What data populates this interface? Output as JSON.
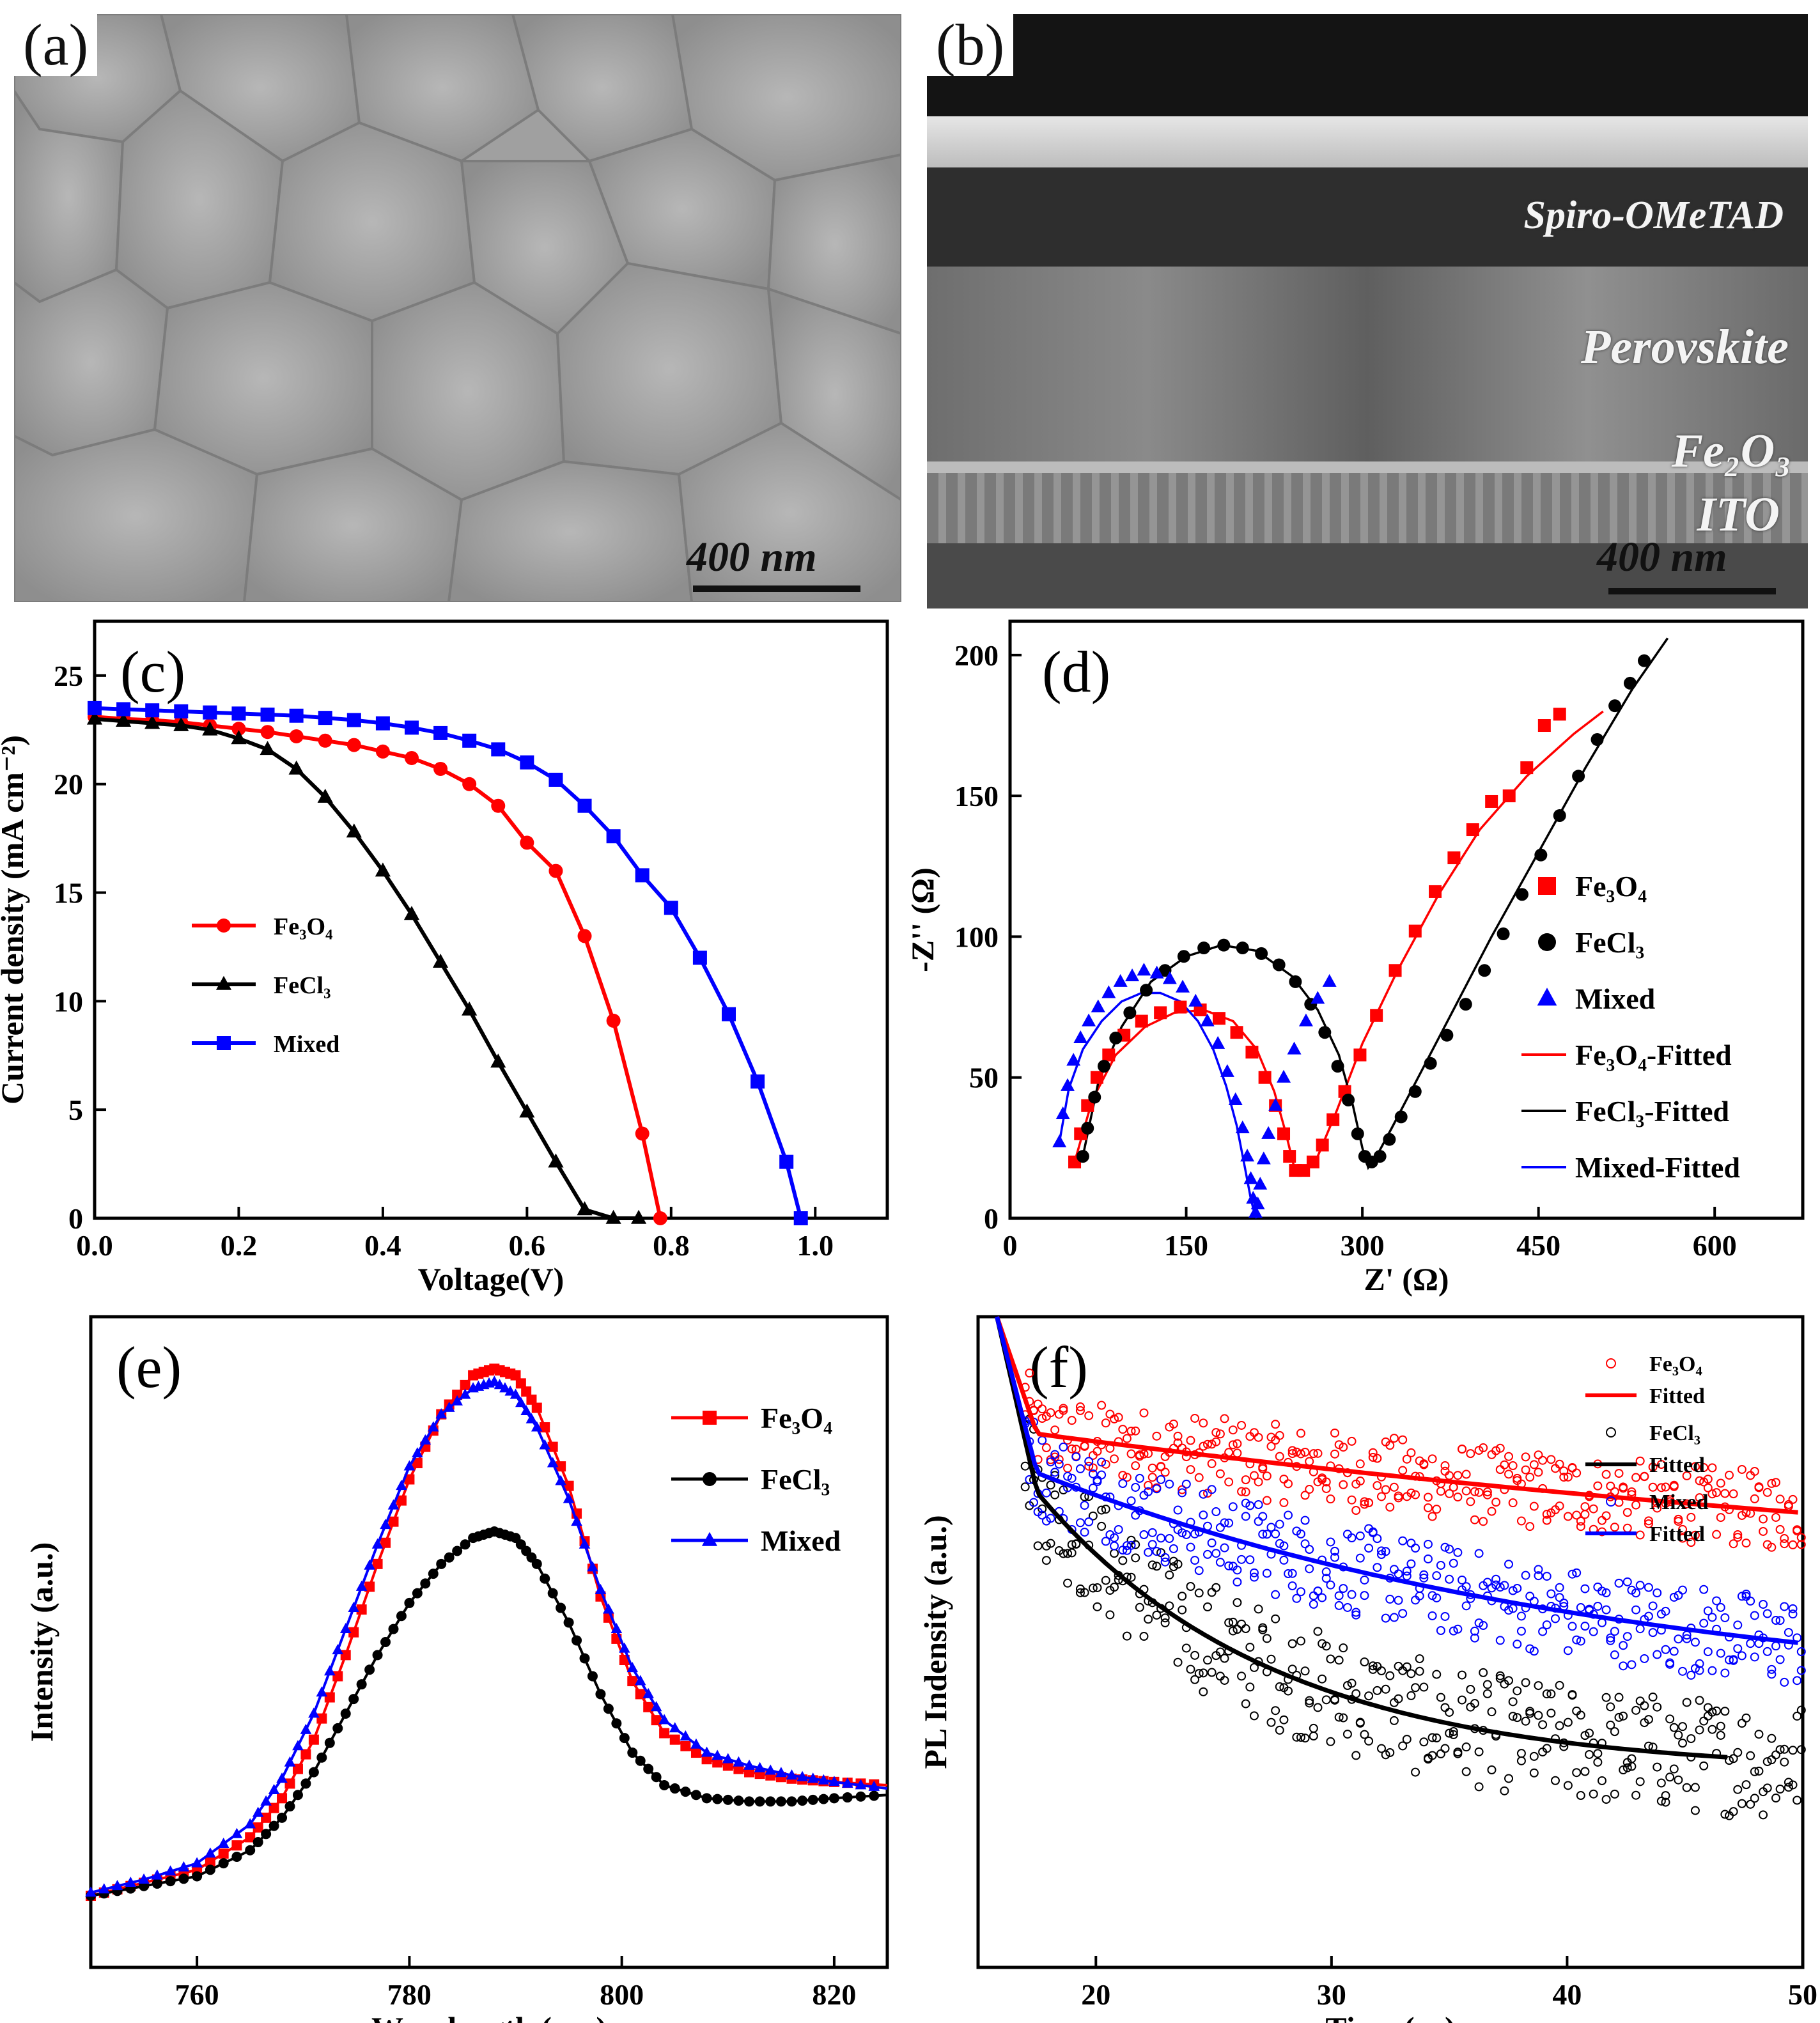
{
  "panels": {
    "a": {
      "label": "(a)",
      "scale": "400 nm"
    },
    "b": {
      "label": "(b)",
      "scale": "400 nm",
      "layers": [
        "Spiro-OMeTAD",
        "Perovskite",
        "Fe₂O₃",
        "ITO"
      ]
    }
  },
  "chart_data": [
    {
      "id": "c",
      "label": "(c)",
      "type": "line",
      "xlabel": "Voltage(V)",
      "ylabel": "Current density (mA cm⁻²)",
      "xlim": [
        0,
        1.1
      ],
      "ylim": [
        0,
        27.5
      ],
      "xticks": [
        0.0,
        0.2,
        0.4,
        0.6,
        0.8,
        1.0
      ],
      "xtick_labels": [
        "0.0",
        "0.2",
        "0.4",
        "0.6",
        "0.8",
        "1.0"
      ],
      "yticks": [
        0,
        5,
        10,
        15,
        20,
        25
      ],
      "ytick_labels": [
        "0",
        "5",
        "10",
        "15",
        "20",
        "25"
      ],
      "legend": "center-left",
      "series": [
        {
          "name": "Fe₃O₄",
          "color": "#ff0000",
          "marker": "circle",
          "x": [
            0,
            0.04,
            0.08,
            0.12,
            0.16,
            0.2,
            0.24,
            0.28,
            0.32,
            0.36,
            0.4,
            0.44,
            0.48,
            0.52,
            0.56,
            0.6,
            0.64,
            0.68,
            0.72,
            0.76,
            0.785
          ],
          "y": [
            23.1,
            23.0,
            22.95,
            22.85,
            22.7,
            22.55,
            22.4,
            22.2,
            22.0,
            21.8,
            21.5,
            21.2,
            20.7,
            20.0,
            19.0,
            17.3,
            16.0,
            13.0,
            9.1,
            3.9,
            0
          ]
        },
        {
          "name": "FeCl₃",
          "color": "#000000",
          "marker": "triangle",
          "x": [
            0,
            0.04,
            0.08,
            0.12,
            0.16,
            0.2,
            0.24,
            0.28,
            0.32,
            0.36,
            0.4,
            0.44,
            0.48,
            0.52,
            0.56,
            0.6,
            0.64,
            0.68,
            0.72,
            0.755
          ],
          "y": [
            23.0,
            22.9,
            22.8,
            22.7,
            22.5,
            22.1,
            21.6,
            20.7,
            19.4,
            17.8,
            16.0,
            14.0,
            11.8,
            9.6,
            7.2,
            4.9,
            2.6,
            0.4,
            0,
            0
          ]
        },
        {
          "name": "Mixed",
          "color": "#0000ff",
          "marker": "square",
          "x": [
            0,
            0.04,
            0.08,
            0.12,
            0.16,
            0.2,
            0.24,
            0.28,
            0.32,
            0.36,
            0.4,
            0.44,
            0.48,
            0.52,
            0.56,
            0.6,
            0.64,
            0.68,
            0.72,
            0.76,
            0.8,
            0.84,
            0.88,
            0.92,
            0.96,
            0.98
          ],
          "y": [
            23.5,
            23.45,
            23.4,
            23.35,
            23.3,
            23.25,
            23.2,
            23.15,
            23.05,
            22.95,
            22.8,
            22.6,
            22.35,
            22.0,
            21.6,
            21.0,
            20.2,
            19.0,
            17.6,
            15.8,
            14.3,
            12.0,
            9.4,
            6.3,
            2.6,
            0
          ]
        }
      ]
    },
    {
      "id": "d",
      "label": "(d)",
      "type": "scatter",
      "xlabel": "Z' (Ω)",
      "ylabel": "-Z'' (Ω)",
      "xlim": [
        0,
        675
      ],
      "ylim": [
        0,
        212
      ],
      "xticks": [
        0,
        150,
        300,
        450,
        600
      ],
      "xtick_labels": [
        "0",
        "150",
        "300",
        "450",
        "600"
      ],
      "yticks": [
        0,
        50,
        100,
        150,
        200
      ],
      "ytick_labels": [
        "0",
        "50",
        "100",
        "150",
        "200"
      ],
      "legend": "right",
      "series": [
        {
          "name": "Fe₃O₄",
          "color": "#ff0000",
          "marker": "square",
          "x": [
            55,
            60,
            66,
            74,
            84,
            97,
            112,
            128,
            145,
            162,
            178,
            193,
            206,
            217,
            226,
            233,
            238,
            243,
            250,
            258,
            266,
            275,
            285,
            298,
            312,
            328,
            345,
            362,
            378,
            394,
            410,
            425,
            440,
            455,
            468
          ],
          "y": [
            20,
            30,
            40,
            50,
            58,
            65,
            70,
            73,
            75,
            74,
            71,
            66,
            59,
            50,
            40,
            30,
            22,
            17,
            17,
            20,
            26,
            35,
            45,
            58,
            72,
            88,
            102,
            116,
            128,
            138,
            148,
            150,
            160,
            175,
            179
          ]
        },
        {
          "name": "FeCl₃",
          "color": "#000000",
          "marker": "circle",
          "x": [
            62,
            66,
            72,
            80,
            90,
            102,
            116,
            132,
            148,
            165,
            182,
            198,
            214,
            229,
            243,
            256,
            268,
            279,
            288,
            296,
            302,
            308,
            315,
            323,
            333,
            345,
            358,
            372,
            388,
            404,
            420,
            436,
            452,
            468,
            484,
            500,
            515,
            528,
            540
          ],
          "y": [
            22,
            32,
            43,
            54,
            64,
            73,
            81,
            88,
            93,
            96,
            97,
            96,
            94,
            90,
            84,
            76,
            66,
            54,
            42,
            30,
            22,
            20,
            22,
            28,
            36,
            45,
            55,
            65,
            76,
            88,
            101,
            115,
            129,
            143,
            157,
            170,
            182,
            190,
            198
          ]
        },
        {
          "name": "Mixed",
          "color": "#0000ff",
          "marker": "triangle",
          "x": [
            42,
            45,
            49,
            54,
            60,
            67,
            75,
            84,
            94,
            104,
            114,
            125,
            136,
            147,
            158,
            168,
            177,
            185,
            192,
            198,
            202,
            205,
            207,
            209,
            211,
            213,
            216,
            220,
            226,
            233,
            242,
            252,
            262,
            272
          ],
          "y": [
            27,
            37,
            47,
            56,
            64,
            70,
            75,
            80,
            84,
            86,
            88,
            87,
            85,
            82,
            77,
            70,
            62,
            52,
            42,
            32,
            22,
            14,
            7,
            2,
            5,
            12,
            21,
            30,
            40,
            50,
            60,
            70,
            78,
            84
          ]
        }
      ],
      "fits": [
        {
          "name": "Fe₃O₄-Fitted",
          "color": "#ff0000",
          "x": [
            55,
            70,
            90,
            115,
            140,
            165,
            190,
            210,
            225,
            235,
            242,
            250,
            262,
            278,
            300,
            330,
            365,
            400,
            440,
            480,
            505
          ],
          "y": [
            20,
            42,
            58,
            68,
            73,
            74,
            70,
            60,
            45,
            30,
            18,
            16,
            22,
            38,
            62,
            88,
            115,
            138,
            157,
            172,
            180
          ]
        },
        {
          "name": "FeCl₃-Fitted",
          "color": "#000000",
          "x": [
            62,
            75,
            95,
            120,
            150,
            180,
            210,
            240,
            262,
            280,
            292,
            300,
            305,
            312,
            325,
            345,
            375,
            410,
            450,
            490,
            530,
            560
          ],
          "y": [
            22,
            48,
            68,
            84,
            93,
            97,
            95,
            86,
            74,
            58,
            40,
            25,
            18,
            22,
            32,
            48,
            72,
            100,
            130,
            160,
            188,
            206
          ]
        },
        {
          "name": "Mixed-Fitted",
          "color": "#0000ff",
          "x": [
            42,
            50,
            62,
            78,
            95,
            112,
            128,
            145,
            160,
            173,
            184,
            193,
            200,
            205,
            208,
            210
          ],
          "y": [
            27,
            46,
            60,
            70,
            77,
            80,
            80,
            77,
            70,
            60,
            47,
            33,
            18,
            7,
            2,
            0
          ]
        }
      ]
    },
    {
      "id": "e",
      "label": "(e)",
      "type": "line",
      "xlabel": "Wavelength (nm)",
      "ylabel": "Intensity (a.u.)",
      "xlim": [
        750,
        825
      ],
      "ylim": [
        0,
        1
      ],
      "xticks": [
        760,
        780,
        800,
        820
      ],
      "xtick_labels": [
        "760",
        "780",
        "800",
        "820"
      ],
      "yticks": [],
      "ytick_labels": [],
      "legend": "top-right",
      "series": [
        {
          "name": "Fe₃O₄",
          "color": "#ff0000",
          "marker": "square",
          "x": [
            750,
            755,
            760,
            765,
            768,
            771,
            774,
            777,
            780,
            783,
            786,
            788,
            790,
            792,
            795,
            798,
            801,
            804,
            808,
            812,
            816,
            820,
            825
          ],
          "y": [
            0.11,
            0.13,
            0.15,
            0.2,
            0.26,
            0.35,
            0.48,
            0.62,
            0.75,
            0.85,
            0.91,
            0.92,
            0.91,
            0.86,
            0.74,
            0.57,
            0.44,
            0.36,
            0.32,
            0.3,
            0.29,
            0.285,
            0.28
          ]
        },
        {
          "name": "FeCl₃",
          "color": "#000000",
          "marker": "circle",
          "x": [
            750,
            755,
            760,
            765,
            768,
            771,
            774,
            777,
            780,
            783,
            786,
            788,
            790,
            792,
            795,
            798,
            801,
            804,
            808,
            812,
            816,
            820,
            825
          ],
          "y": [
            0.11,
            0.125,
            0.14,
            0.18,
            0.23,
            0.3,
            0.39,
            0.48,
            0.56,
            0.62,
            0.66,
            0.67,
            0.66,
            0.62,
            0.53,
            0.42,
            0.33,
            0.28,
            0.26,
            0.255,
            0.255,
            0.26,
            0.265
          ]
        },
        {
          "name": "Mixed",
          "color": "#0000ff",
          "marker": "triangle",
          "x": [
            750,
            755,
            760,
            765,
            768,
            771,
            774,
            777,
            780,
            783,
            786,
            788,
            790,
            792,
            795,
            798,
            801,
            804,
            808,
            812,
            816,
            820,
            825
          ],
          "y": [
            0.115,
            0.135,
            0.16,
            0.22,
            0.29,
            0.39,
            0.52,
            0.65,
            0.77,
            0.85,
            0.89,
            0.9,
            0.88,
            0.83,
            0.72,
            0.58,
            0.46,
            0.38,
            0.33,
            0.31,
            0.295,
            0.285,
            0.275
          ]
        }
      ]
    },
    {
      "id": "f",
      "label": "(f)",
      "type": "scatter",
      "xlabel": "Time (ns)",
      "ylabel": "PL Indensity (a.u.)",
      "xlim": [
        15,
        50
      ],
      "ylim": [
        0,
        1
      ],
      "xticks": [
        20,
        30,
        40,
        50
      ],
      "xtick_labels": [
        "20",
        "30",
        "40",
        "50"
      ],
      "yticks": [],
      "ytick_labels": [],
      "legend": "top-right",
      "series": [
        {
          "name": "Fe₃O₄",
          "color": "#ff0000",
          "marker": "open-circle",
          "decay": {
            "t0": 17.5,
            "a": 0.82,
            "b": 0.53,
            "tau": 60,
            "spread": 0.06
          }
        },
        {
          "name": "FeCl₃",
          "color": "#000000",
          "marker": "open-circle",
          "decay": {
            "t0": 17.5,
            "a": 0.73,
            "b": 0.3,
            "tau": 10,
            "spread": 0.09
          }
        },
        {
          "name": "Mixed",
          "color": "#0000ff",
          "marker": "open-circle",
          "decay": {
            "t0": 17.5,
            "a": 0.76,
            "b": 0.4,
            "tau": 25,
            "spread": 0.07
          }
        }
      ],
      "fits": [
        {
          "name": "Fitted",
          "color": "#ff0000"
        },
        {
          "name": "Fitted",
          "color": "#000000"
        },
        {
          "name": "Fitted",
          "color": "#0000ff"
        }
      ]
    }
  ]
}
